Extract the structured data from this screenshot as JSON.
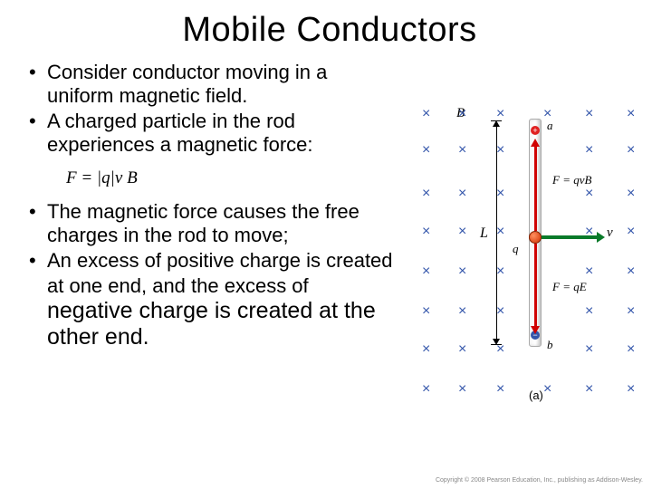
{
  "title": "Mobile Conductors",
  "bullets": [
    "Consider conductor moving in a uniform magnetic field.",
    "A charged particle in the rod experiences a magnetic force:"
  ],
  "formula": "F = |q| v B",
  "bullets2": [
    {
      "lead": "The magnetic force causes the free charges in the rod to move;"
    },
    {
      "lead": "An excess of positive charge is created at one end, and the excess of",
      "tail": " negative charge is created at the other end."
    }
  ],
  "diagram": {
    "rows": [
      40,
      80,
      128,
      170,
      214,
      258,
      300,
      344
    ],
    "cols": [
      18,
      58,
      100,
      152,
      198,
      244
    ],
    "cross_color": "#3355aa",
    "labels": {
      "B": "B⃗",
      "L": "L",
      "q": "q",
      "a": "a",
      "b": "b",
      "v": "v⃗",
      "F1": "F = qvB",
      "F2": "F = qE",
      "caption": "(a)"
    },
    "colors": {
      "red": "#d00000",
      "green": "#0a7a2a",
      "blue": "#3355aa"
    }
  },
  "copyright": "Copyright © 2008 Pearson Education, Inc., publishing as Addison-Wesley."
}
